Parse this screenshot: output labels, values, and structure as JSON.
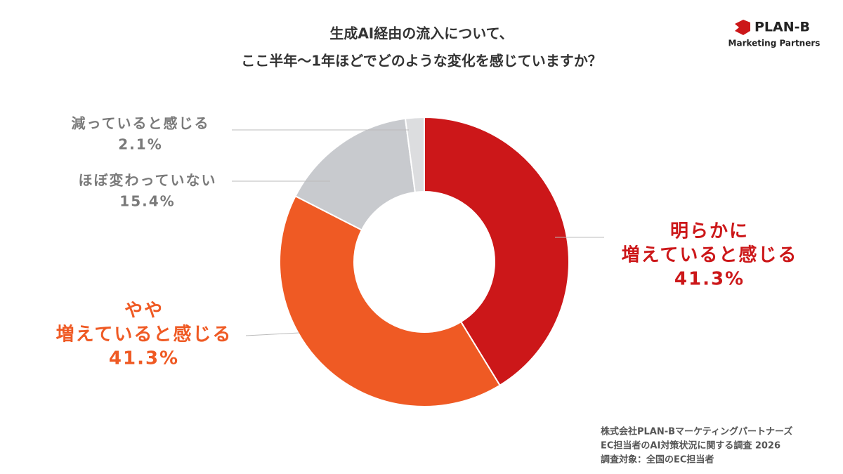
{
  "brand": {
    "name": "PLAN-B",
    "tagline": "Marketing Partners"
  },
  "chart_data": {
    "type": "donut",
    "title": [
      "生成AI経由の流入について、",
      "ここ半年〜1年ほどでどのような変化を感じていますか？"
    ],
    "categories": [
      [
        "明らかに",
        "増えていると感じる"
      ],
      [
        "やや",
        "増えていると感じる"
      ],
      [
        "ほぼ変わっていない"
      ],
      [
        "減っていると感じる"
      ]
    ],
    "values": [
      41.3,
      41.3,
      15.4,
      2.1
    ],
    "value_labels": [
      "41.3%",
      "41.3%",
      "15.4%",
      "2.1%"
    ],
    "colors": [
      "#cc1719",
      "#ef5a24",
      "#c8cace",
      "#dcdddf"
    ],
    "label_colors": [
      "#cc1719",
      "#ef5a24",
      "#7a7a7a",
      "#7a7a7a"
    ]
  },
  "source": [
    "株式会社PLAN-Bマーケティングパートナーズ",
    "EC担当者のAI対策状況に関する調査 2026",
    "調査対象：全国のEC担当者"
  ]
}
